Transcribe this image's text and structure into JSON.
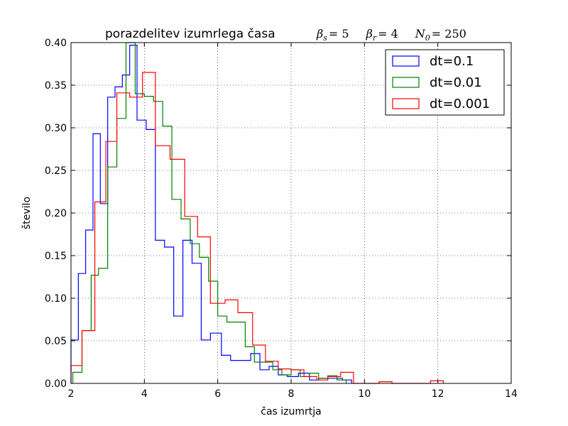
{
  "chart_data": {
    "type": "histogram",
    "title_text": "porazdelitev izumrlega časa",
    "title_params": [
      {
        "sym": "β",
        "sub": "s",
        "eq": "= 5"
      },
      {
        "sym": "β",
        "sub": "r",
        "eq": "= 4"
      },
      {
        "sym": "N",
        "sub": "0",
        "eq": "= 250"
      }
    ],
    "xlabel": "čas izumrtja",
    "ylabel": "število",
    "xlim": [
      2,
      14
    ],
    "ylim": [
      0,
      0.4
    ],
    "xticks": [
      "2",
      "4",
      "6",
      "8",
      "10",
      "12",
      "14"
    ],
    "yticks": [
      "0.00",
      "0.05",
      "0.10",
      "0.15",
      "0.20",
      "0.25",
      "0.30",
      "0.35",
      "0.40"
    ],
    "grid": true,
    "legend_position": "top-right",
    "series": [
      {
        "name": "dt=0.1",
        "color": "#0000ff",
        "edges": [
          2.0,
          2.2,
          2.4,
          2.6,
          2.8,
          3.0,
          3.2,
          3.4,
          3.6,
          3.8,
          4.05,
          4.3,
          4.55,
          4.8,
          5.05,
          5.3,
          5.55,
          5.8,
          6.1,
          6.35,
          6.9,
          7.15,
          7.4,
          7.65,
          7.9,
          8.2,
          8.5,
          8.75,
          9.05,
          9.4,
          9.65
        ],
        "values": [
          0.051,
          0.129,
          0.18,
          0.293,
          0.211,
          0.336,
          0.348,
          0.362,
          0.397,
          0.309,
          0.298,
          0.168,
          0.16,
          0.079,
          0.168,
          0.141,
          0.051,
          0.059,
          0.033,
          0.027,
          0.035,
          0.016,
          0.02,
          0.01,
          0.008,
          0.012,
          0.004,
          0.006,
          0.006,
          0.004
        ]
      },
      {
        "name": "dt=0.01",
        "color": "#008000",
        "edges": [
          2.05,
          2.3,
          2.55,
          2.75,
          3.0,
          3.25,
          3.5,
          3.75,
          4.0,
          4.25,
          4.5,
          4.75,
          5.0,
          5.25,
          5.5,
          5.75,
          6.0,
          6.25,
          6.75,
          7.0,
          7.5,
          7.75,
          8.0,
          8.25,
          8.5,
          8.75,
          9.0,
          9.25,
          9.5
        ],
        "values": [
          0.013,
          0.062,
          0.127,
          0.135,
          0.254,
          0.311,
          0.4,
          0.34,
          0.337,
          0.331,
          0.302,
          0.216,
          0.193,
          0.164,
          0.148,
          0.12,
          0.079,
          0.072,
          0.043,
          0.025,
          0.016,
          0.01,
          0.016,
          0.008,
          0.012,
          0.006,
          0.009,
          0.004
        ]
      },
      {
        "name": "dt=0.001",
        "color": "#ff0000",
        "edges": [
          2.0,
          2.3,
          2.65,
          2.95,
          3.25,
          3.6,
          3.95,
          4.3,
          4.7,
          5.1,
          5.45,
          5.8,
          6.2,
          6.55,
          6.95,
          7.3,
          7.65,
          8.0,
          8.35,
          8.7,
          9.0,
          9.35,
          9.7,
          10.05,
          10.4,
          10.75,
          11.1,
          11.45,
          11.8,
          12.15
        ],
        "values": [
          0.021,
          0.062,
          0.213,
          0.284,
          0.341,
          0.336,
          0.365,
          0.279,
          0.263,
          0.196,
          0.172,
          0.094,
          0.098,
          0.083,
          0.045,
          0.026,
          0.017,
          0.016,
          0.008,
          0.004,
          0.008,
          0.013,
          0.0,
          0.0,
          0.002,
          0.0,
          0.0,
          0.0,
          0.003
        ]
      }
    ]
  }
}
